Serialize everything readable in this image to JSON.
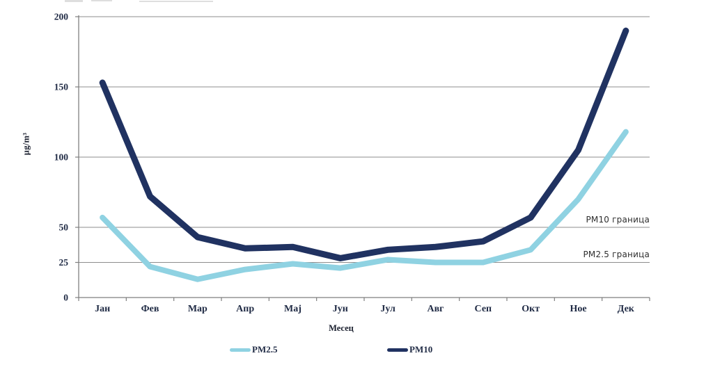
{
  "chart_data": {
    "type": "line",
    "title": "",
    "ylabel": "µg/m³",
    "xlabel": "Месец",
    "categories": [
      "Јан",
      "Фев",
      "Мар",
      "Апр",
      "Мај",
      "Јун",
      "Јул",
      "Авг",
      "Сеп",
      "Окт",
      "Ное",
      "Дек"
    ],
    "series": [
      {
        "name": "PM2.5",
        "color": "#8fd2e2",
        "values": [
          57,
          22,
          13,
          20,
          24,
          21,
          27,
          25,
          25,
          34,
          70,
          118
        ]
      },
      {
        "name": "PM10",
        "color": "#203261",
        "values": [
          153,
          72,
          43,
          35,
          36,
          28,
          34,
          36,
          40,
          57,
          105,
          190
        ]
      }
    ],
    "ylim": [
      0,
      200
    ],
    "yticks": [
      0,
      25,
      50,
      100,
      150,
      200
    ],
    "grid": "horizontal",
    "legend_position": "bottom",
    "annotations": [
      {
        "text": "PM10 граница",
        "y": 50
      },
      {
        "text": "PM2.5 граница",
        "y": 25
      }
    ]
  },
  "colors": {
    "gridline": "#8d8d8d",
    "axis": "#7f7f7f",
    "tick_label": "#1f2a44",
    "annotation_text": "#2e2e2e"
  }
}
